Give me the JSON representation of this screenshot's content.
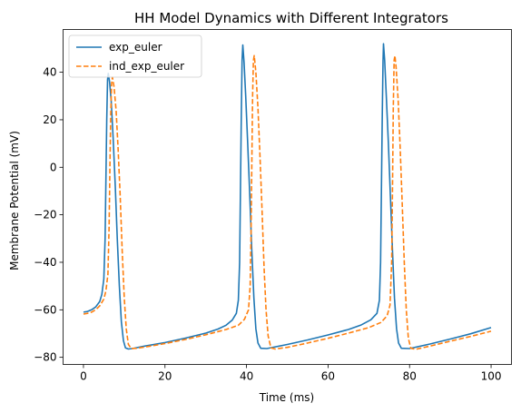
{
  "chart_data": {
    "type": "line",
    "title": "HH Model Dynamics with Different Integrators",
    "xlabel": "Time (ms)",
    "ylabel": "Membrane Potential (mV)",
    "xlim": [
      -5,
      105
    ],
    "ylim": [
      -83,
      58
    ],
    "xticks": [
      0,
      20,
      40,
      60,
      80,
      100
    ],
    "yticks": [
      -80,
      -60,
      -40,
      -20,
      0,
      20,
      40
    ],
    "grid": false,
    "legend_position": "top-left",
    "series": [
      {
        "name": "exp_euler",
        "color": "#1f77b4",
        "style": "solid",
        "points": [
          [
            0,
            -61.0
          ],
          [
            1,
            -60.7
          ],
          [
            2,
            -60.0
          ],
          [
            3,
            -58.8
          ],
          [
            4,
            -56.5
          ],
          [
            4.5,
            -53.5
          ],
          [
            5,
            -47
          ],
          [
            5.3,
            -30
          ],
          [
            5.5,
            -5
          ],
          [
            5.7,
            20
          ],
          [
            5.9,
            37
          ],
          [
            6.1,
            39.5
          ],
          [
            6.4,
            36
          ],
          [
            6.8,
            28
          ],
          [
            7.3,
            12
          ],
          [
            7.8,
            -8
          ],
          [
            8.3,
            -30
          ],
          [
            8.8,
            -50
          ],
          [
            9.3,
            -65
          ],
          [
            9.8,
            -73
          ],
          [
            10.3,
            -76
          ],
          [
            11,
            -76.5
          ],
          [
            12,
            -76.3
          ],
          [
            15,
            -75.3
          ],
          [
            20,
            -73.8
          ],
          [
            25,
            -71.9
          ],
          [
            30,
            -69.8
          ],
          [
            33,
            -68.1
          ],
          [
            35,
            -66.5
          ],
          [
            36.5,
            -64.3
          ],
          [
            37.5,
            -61.5
          ],
          [
            38,
            -56
          ],
          [
            38.3,
            -40
          ],
          [
            38.5,
            -10
          ],
          [
            38.7,
            20
          ],
          [
            38.9,
            45
          ],
          [
            39.1,
            51.5
          ],
          [
            39.4,
            44
          ],
          [
            39.8,
            30
          ],
          [
            40.3,
            10
          ],
          [
            40.8,
            -12
          ],
          [
            41.3,
            -35
          ],
          [
            41.8,
            -55
          ],
          [
            42.3,
            -68
          ],
          [
            42.8,
            -74
          ],
          [
            43.5,
            -76.2
          ],
          [
            45,
            -76.3
          ],
          [
            50,
            -74.6
          ],
          [
            55,
            -72.7
          ],
          [
            60,
            -70.6
          ],
          [
            65,
            -68.3
          ],
          [
            68,
            -66.5
          ],
          [
            70.5,
            -64.2
          ],
          [
            72,
            -61.5
          ],
          [
            72.6,
            -56
          ],
          [
            72.9,
            -40
          ],
          [
            73.1,
            -10
          ],
          [
            73.3,
            20
          ],
          [
            73.5,
            45
          ],
          [
            73.6,
            52
          ],
          [
            73.9,
            45
          ],
          [
            74.3,
            30
          ],
          [
            74.8,
            10
          ],
          [
            75.3,
            -12
          ],
          [
            75.8,
            -35
          ],
          [
            76.3,
            -55
          ],
          [
            76.8,
            -68
          ],
          [
            77.3,
            -74
          ],
          [
            78,
            -76.2
          ],
          [
            80,
            -76.3
          ],
          [
            85,
            -74.4
          ],
          [
            90,
            -72.3
          ],
          [
            95,
            -70.1
          ],
          [
            100,
            -67.5
          ]
        ]
      },
      {
        "name": "ind_exp_euler",
        "color": "#ff7f0e",
        "style": "dashed",
        "points": [
          [
            0,
            -61.8
          ],
          [
            1,
            -61.5
          ],
          [
            2,
            -61.0
          ],
          [
            3,
            -60.0
          ],
          [
            4,
            -58.3
          ],
          [
            5,
            -55.5
          ],
          [
            5.5,
            -52
          ],
          [
            6,
            -45
          ],
          [
            6.3,
            -25
          ],
          [
            6.5,
            0
          ],
          [
            6.7,
            22
          ],
          [
            6.9,
            35
          ],
          [
            7.1,
            38
          ],
          [
            7.5,
            34
          ],
          [
            8,
            24
          ],
          [
            8.5,
            8
          ],
          [
            9,
            -12
          ],
          [
            9.5,
            -35
          ],
          [
            10,
            -55
          ],
          [
            10.5,
            -68
          ],
          [
            11,
            -74.5
          ],
          [
            11.7,
            -76.3
          ],
          [
            13,
            -76.2
          ],
          [
            15,
            -75.7
          ],
          [
            20,
            -74.2
          ],
          [
            25,
            -72.5
          ],
          [
            30,
            -70.5
          ],
          [
            35,
            -68.3
          ],
          [
            38,
            -66.5
          ],
          [
            39.5,
            -64
          ],
          [
            40.5,
            -60
          ],
          [
            40.9,
            -50
          ],
          [
            41.1,
            -30
          ],
          [
            41.3,
            0
          ],
          [
            41.5,
            30
          ],
          [
            41.7,
            45
          ],
          [
            41.9,
            47
          ],
          [
            42.3,
            40
          ],
          [
            42.8,
            25
          ],
          [
            43.3,
            5
          ],
          [
            43.8,
            -18
          ],
          [
            44.3,
            -42
          ],
          [
            44.8,
            -60
          ],
          [
            45.3,
            -71
          ],
          [
            46,
            -76
          ],
          [
            47,
            -76.5
          ],
          [
            50,
            -75.8
          ],
          [
            55,
            -74
          ],
          [
            60,
            -72
          ],
          [
            65,
            -69.8
          ],
          [
            70,
            -67.5
          ],
          [
            73,
            -65.3
          ],
          [
            74.5,
            -62.5
          ],
          [
            75.2,
            -58
          ],
          [
            75.6,
            -40
          ],
          [
            75.8,
            -10
          ],
          [
            76,
            25
          ],
          [
            76.2,
            45
          ],
          [
            76.4,
            47
          ],
          [
            76.7,
            42
          ],
          [
            77.2,
            28
          ],
          [
            77.7,
            8
          ],
          [
            78.2,
            -15
          ],
          [
            78.7,
            -40
          ],
          [
            79.2,
            -60
          ],
          [
            79.7,
            -72
          ],
          [
            80.3,
            -76.2
          ],
          [
            81.5,
            -76.6
          ],
          [
            85,
            -75.3
          ],
          [
            90,
            -73.2
          ],
          [
            95,
            -71.2
          ],
          [
            100,
            -69
          ]
        ]
      }
    ]
  }
}
